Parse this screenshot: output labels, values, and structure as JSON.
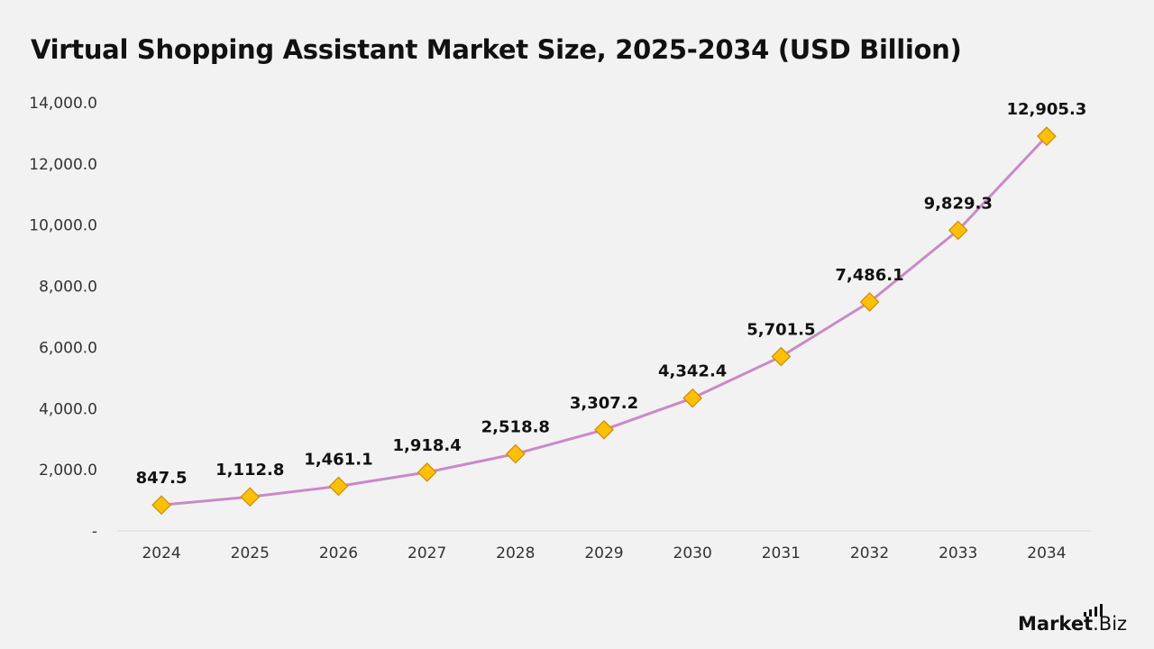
{
  "title": "Virtual Shopping Assistant Market Size, 2025-2034 (USD Billion)",
  "brand": {
    "part1": "Market",
    "part2": ".Biz"
  },
  "colors": {
    "line": "#c98ac6",
    "marker_fill": "#ffc000",
    "marker_stroke": "#d08a00",
    "axis": "#d9d9d9"
  },
  "chart_data": {
    "type": "line",
    "categories": [
      "2024",
      "2025",
      "2026",
      "2027",
      "2028",
      "2029",
      "2030",
      "2031",
      "2032",
      "2033",
      "2034"
    ],
    "series": [
      {
        "values": [
          847.5,
          1112.8,
          1461.1,
          1918.4,
          2518.8,
          3307.2,
          4342.4,
          5701.5,
          7486.1,
          9829.3,
          12905.3
        ],
        "labels": [
          "847.5",
          "1,112.8",
          "1,461.1",
          "1,918.4",
          "2,518.8",
          "3,307.2",
          "4,342.4",
          "5,701.5",
          "7,486.1",
          "9,829.3",
          "12,905.3"
        ]
      }
    ],
    "yticks": [
      0,
      2000,
      4000,
      6000,
      8000,
      10000,
      12000,
      14000
    ],
    "ytick_labels": [
      "-",
      "2,000.0",
      "4,000.0",
      "6,000.0",
      "8,000.0",
      "10,000.0",
      "12,000.0",
      "14,000.0"
    ],
    "ylim": [
      0,
      14000
    ],
    "marker": "diamond",
    "grid": false,
    "legend": "none"
  }
}
